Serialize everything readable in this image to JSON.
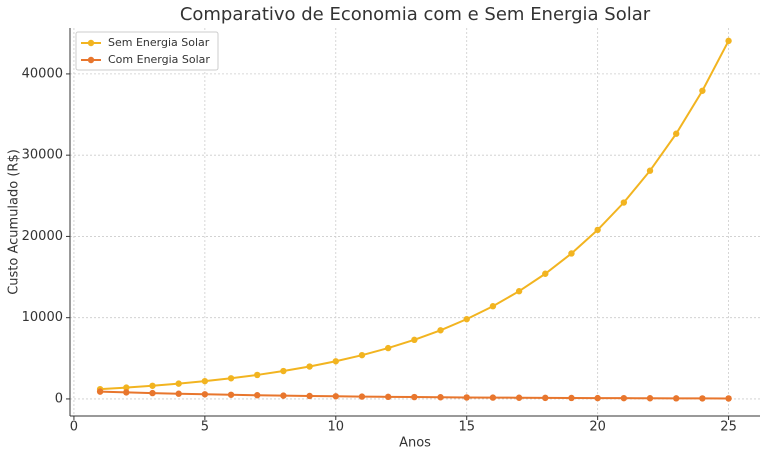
{
  "chart_data": {
    "type": "line",
    "title": "Comparativo de Economia com e Sem Energia Solar",
    "x_label": "Anos",
    "y_label": "Custo Acumulado (R$)",
    "x": [
      1,
      2,
      3,
      4,
      5,
      6,
      7,
      8,
      9,
      10,
      11,
      12,
      13,
      14,
      15,
      16,
      17,
      18,
      19,
      20,
      21,
      22,
      23,
      24,
      25
    ],
    "series": [
      {
        "name": "Sem Energia Solar",
        "color": "#f2b420",
        "values": [
          1200,
          1394,
          1620,
          1883,
          2188,
          2542,
          2954,
          3433,
          3989,
          4635,
          5386,
          6258,
          7272,
          8450,
          9819,
          11410,
          13258,
          15406,
          17902,
          20802,
          24172,
          28088,
          32638,
          37926,
          44070
        ]
      },
      {
        "name": "Com Energia Solar",
        "color": "#e8762d",
        "values": [
          900,
          804,
          718,
          641,
          572,
          511,
          456,
          407,
          364,
          325,
          290,
          259,
          231,
          207,
          184,
          165,
          147,
          131,
          117,
          105,
          94,
          84,
          75,
          67,
          60
        ]
      }
    ],
    "xlim": [
      -0.15,
      26.2
    ],
    "ylim": [
      -2100,
      45650
    ],
    "xticks": [
      0,
      5,
      10,
      15,
      20,
      25
    ],
    "yticks": [
      0,
      10000,
      20000,
      30000,
      40000
    ],
    "grid": true,
    "legend": "upper-left"
  }
}
